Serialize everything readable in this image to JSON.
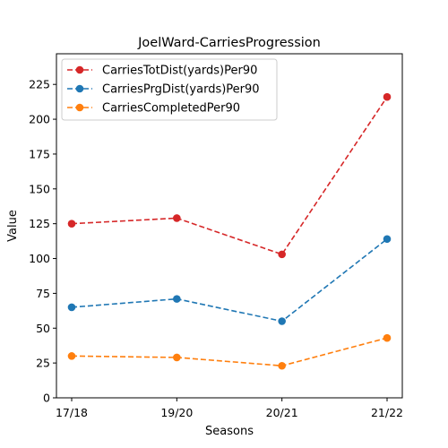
{
  "chart_data": {
    "type": "line",
    "title": "JoelWard-CarriesProgression",
    "xlabel": "Seasons",
    "ylabel": "Value",
    "categories": [
      "17/18",
      "19/20",
      "20/21",
      "21/22"
    ],
    "ylim": [
      0,
      247
    ],
    "yticks": [
      0,
      25,
      50,
      75,
      100,
      125,
      150,
      175,
      200,
      225
    ],
    "grid": false,
    "legend_position": "top-left",
    "series": [
      {
        "name": "CarriesTotDist(yards)Per90",
        "color": "#d62728",
        "values": [
          125,
          129,
          103,
          216
        ]
      },
      {
        "name": "CarriesPrgDist(yards)Per90",
        "color": "#1f77b4",
        "values": [
          65,
          71,
          55,
          114
        ]
      },
      {
        "name": "CarriesCompletedPer90",
        "color": "#ff7f0e",
        "values": [
          30,
          29,
          23,
          43
        ]
      }
    ]
  }
}
